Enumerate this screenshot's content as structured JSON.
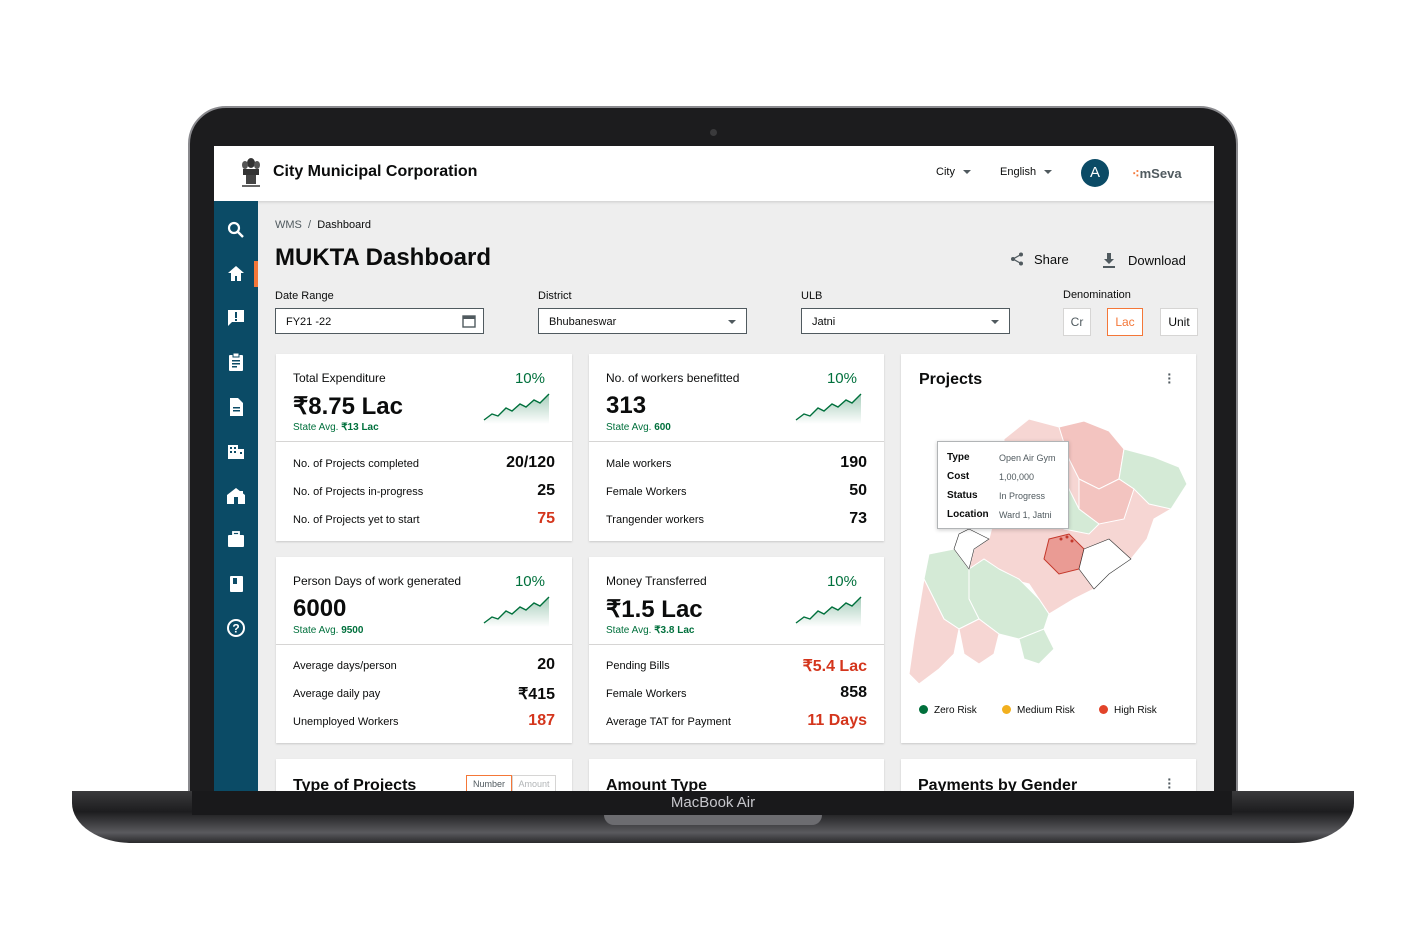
{
  "device": {
    "label": "MacBook Air"
  },
  "header": {
    "org_name": "City Municipal Corporation",
    "city_label": "City",
    "language_label": "English",
    "avatar_initial": "A",
    "brand": "mSeva"
  },
  "sidebar": {
    "icons": [
      "search-icon",
      "home-icon",
      "complaint-icon",
      "clipboard-icon",
      "document-icon",
      "building-icon",
      "property-icon",
      "briefcase-icon",
      "book-icon",
      "help-icon"
    ],
    "active_index": 1,
    "accent": "#f47738",
    "background": "#0b4b66"
  },
  "breadcrumb": {
    "root": "WMS",
    "separator": "/",
    "current": "Dashboard"
  },
  "page": {
    "title": "MUKTA Dashboard",
    "share_label": "Share",
    "download_label": "Download"
  },
  "filters": {
    "date_range": {
      "label": "Date Range",
      "value": "FY21 -22"
    },
    "district": {
      "label": "District",
      "value": "Bhubaneswar"
    },
    "ulb": {
      "label": "ULB",
      "value": "Jatni"
    },
    "denomination": {
      "label": "Denomination",
      "options": [
        "Cr",
        "Lac",
        "Unit"
      ],
      "selected": "Lac"
    }
  },
  "kpis": {
    "total_expenditure": {
      "title": "Total Expenditure",
      "value": "₹8.75 Lac",
      "pct": "10%",
      "avg_label": "State Avg.",
      "avg_value": "₹13 Lac",
      "rows": [
        {
          "label": "No. of Projects completed",
          "value": "20/120",
          "red": false
        },
        {
          "label": "No. of Projects in-progress",
          "value": "25",
          "red": false
        },
        {
          "label": "No. of Projects yet to start",
          "value": "75",
          "red": true
        }
      ]
    },
    "workers": {
      "title": "No. of workers benefitted",
      "value": "313",
      "pct": "10%",
      "avg_label": "State Avg.",
      "avg_value": "600",
      "rows": [
        {
          "label": "Male workers",
          "value": "190",
          "red": false
        },
        {
          "label": "Female Workers",
          "value": "50",
          "red": false
        },
        {
          "label": "Trangender workers",
          "value": "73",
          "red": false
        }
      ]
    },
    "person_days": {
      "title": "Person Days of work generated",
      "value": "6000",
      "pct": "10%",
      "avg_label": "State Avg.",
      "avg_value": "9500",
      "rows": [
        {
          "label": "Average days/person",
          "value": "20",
          "red": false
        },
        {
          "label": "Average daily pay",
          "value": "₹415",
          "red": false
        },
        {
          "label": "Unemployed Workers",
          "value": "187",
          "red": true
        }
      ]
    },
    "money": {
      "title": "Money Transferred",
      "value": "₹1.5 Lac",
      "pct": "10%",
      "avg_label": "State Avg.",
      "avg_value": "₹3.8 Lac",
      "rows": [
        {
          "label": "Pending Bills",
          "value": "₹5.4 Lac",
          "red": true
        },
        {
          "label": "Female Workers",
          "value": "858",
          "red": false
        },
        {
          "label": "Average TAT for Payment",
          "value": "11 Days",
          "red": true
        }
      ]
    }
  },
  "projects_map": {
    "title": "Projects",
    "tooltip": {
      "type_label": "Type",
      "type_value": "Open Air Gym",
      "cost_label": "Cost",
      "cost_value": "1,00,000",
      "status_label": "Status",
      "status_value": "In Progress",
      "location_label": "Location",
      "location_value": "Ward 1, Jatni"
    },
    "legend": [
      {
        "label": "Zero Risk",
        "color": "#00703c"
      },
      {
        "label": "Medium Risk",
        "color": "#f2b01e"
      },
      {
        "label": "High Risk",
        "color": "#e2442a"
      }
    ]
  },
  "bottom_cards": {
    "type_of_projects": {
      "title": "Type of Projects",
      "toggle": [
        "Number",
        "Amount"
      ]
    },
    "amount_type": {
      "title": "Amount Type"
    },
    "payments_by_gender": {
      "title": "Payments by Gender"
    }
  }
}
